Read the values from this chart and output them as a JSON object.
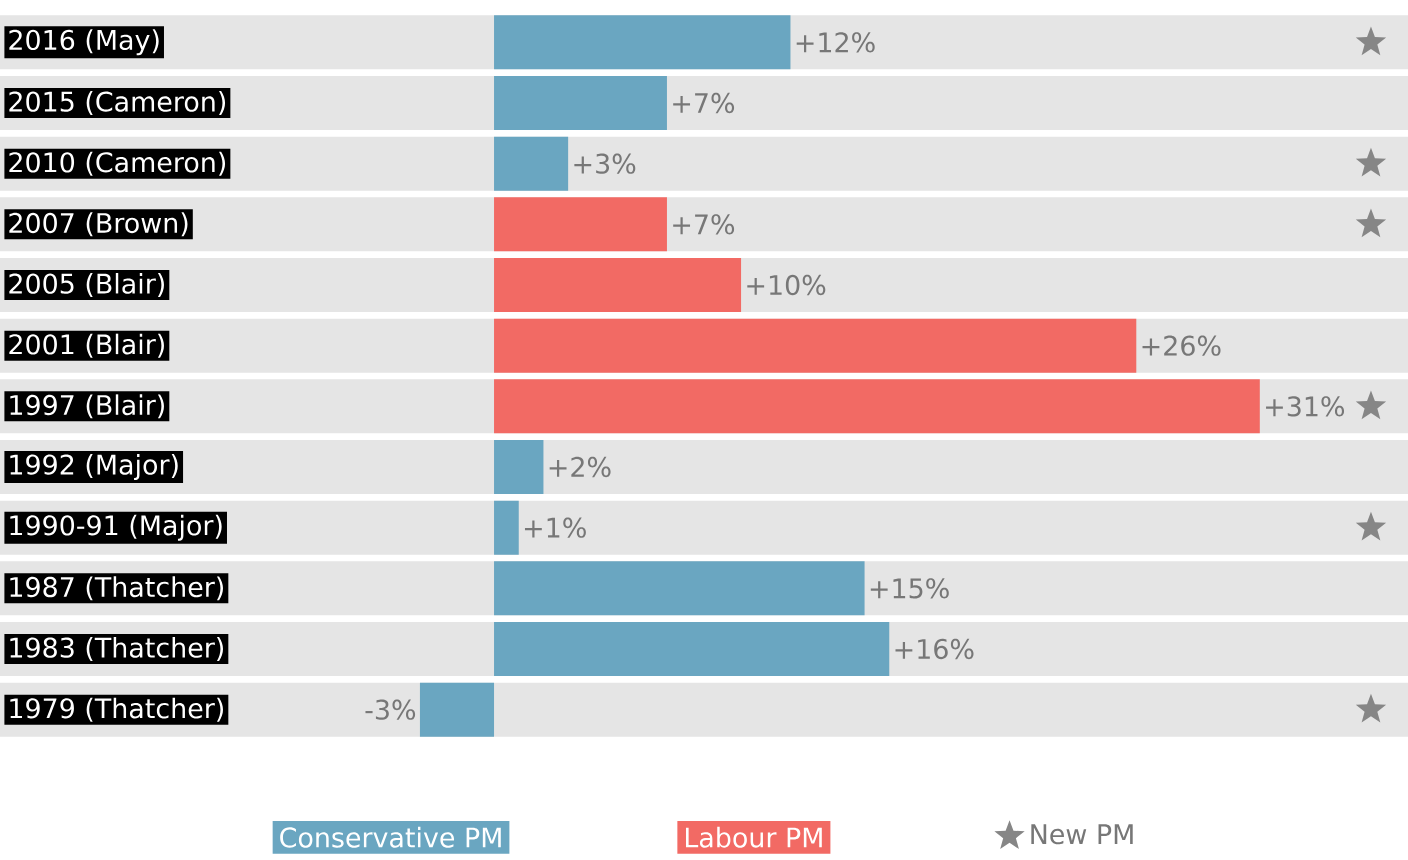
{
  "chart_data": {
    "type": "bar",
    "orientation": "horizontal",
    "grid": "y",
    "legend": "bottom",
    "categories": [
      "2016 (May)",
      "2015 (Cameron)",
      "2010 (Cameron)",
      "2007 (Brown)",
      "2005 (Blair)",
      "2001 (Blair)",
      "1997 (Blair)",
      "1992 (Major)",
      "1990-91 (Major)",
      "1987 (Thatcher)",
      "1983 (Thatcher)",
      "1979 (Thatcher)"
    ],
    "xlim": [
      -20,
      37
    ],
    "series": [
      {
        "name": "Conservative PM",
        "color": "#6aa6c1",
        "values": [
          12,
          7,
          3,
          null,
          null,
          null,
          null,
          2,
          1,
          15,
          16,
          -3
        ],
        "value_labels": [
          "+12%",
          "+7%",
          "+3%",
          null,
          null,
          null,
          null,
          "+2%",
          "+1%",
          "+15%",
          "+16%",
          "-3%"
        ]
      },
      {
        "name": "Labour PM",
        "color": "#f26a64",
        "values": [
          null,
          null,
          null,
          7,
          10,
          26,
          31,
          null,
          null,
          null,
          null,
          null
        ],
        "value_labels": [
          null,
          null,
          null,
          "+7%",
          "+10%",
          "+26%",
          "+31%",
          null,
          null,
          null,
          null,
          null
        ]
      },
      {
        "name": "New PM",
        "type": "scatter",
        "marker": "star",
        "color": "#868686",
        "values": [
          35.5,
          null,
          35.5,
          35.5,
          null,
          null,
          35.5,
          null,
          35.5,
          null,
          null,
          35.5
        ]
      }
    ]
  }
}
